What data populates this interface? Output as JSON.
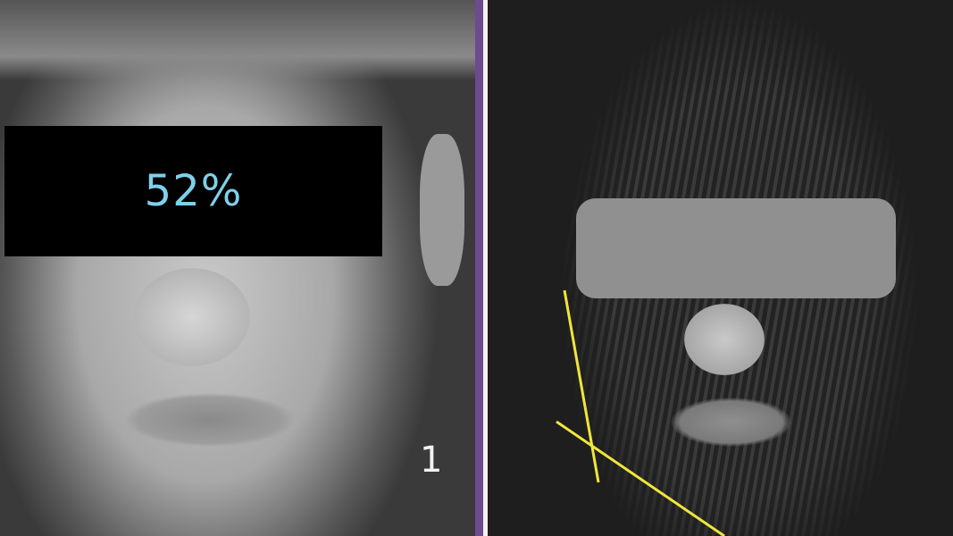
{
  "left_photo": {
    "censor_label": "52%",
    "panel_number": "1",
    "label_color": "#7fd0ea"
  },
  "divider_color": "#6f4a8e",
  "right_photo": {
    "censor_bar_color": "#909090",
    "annotation_line_color": "#f0e63c"
  }
}
